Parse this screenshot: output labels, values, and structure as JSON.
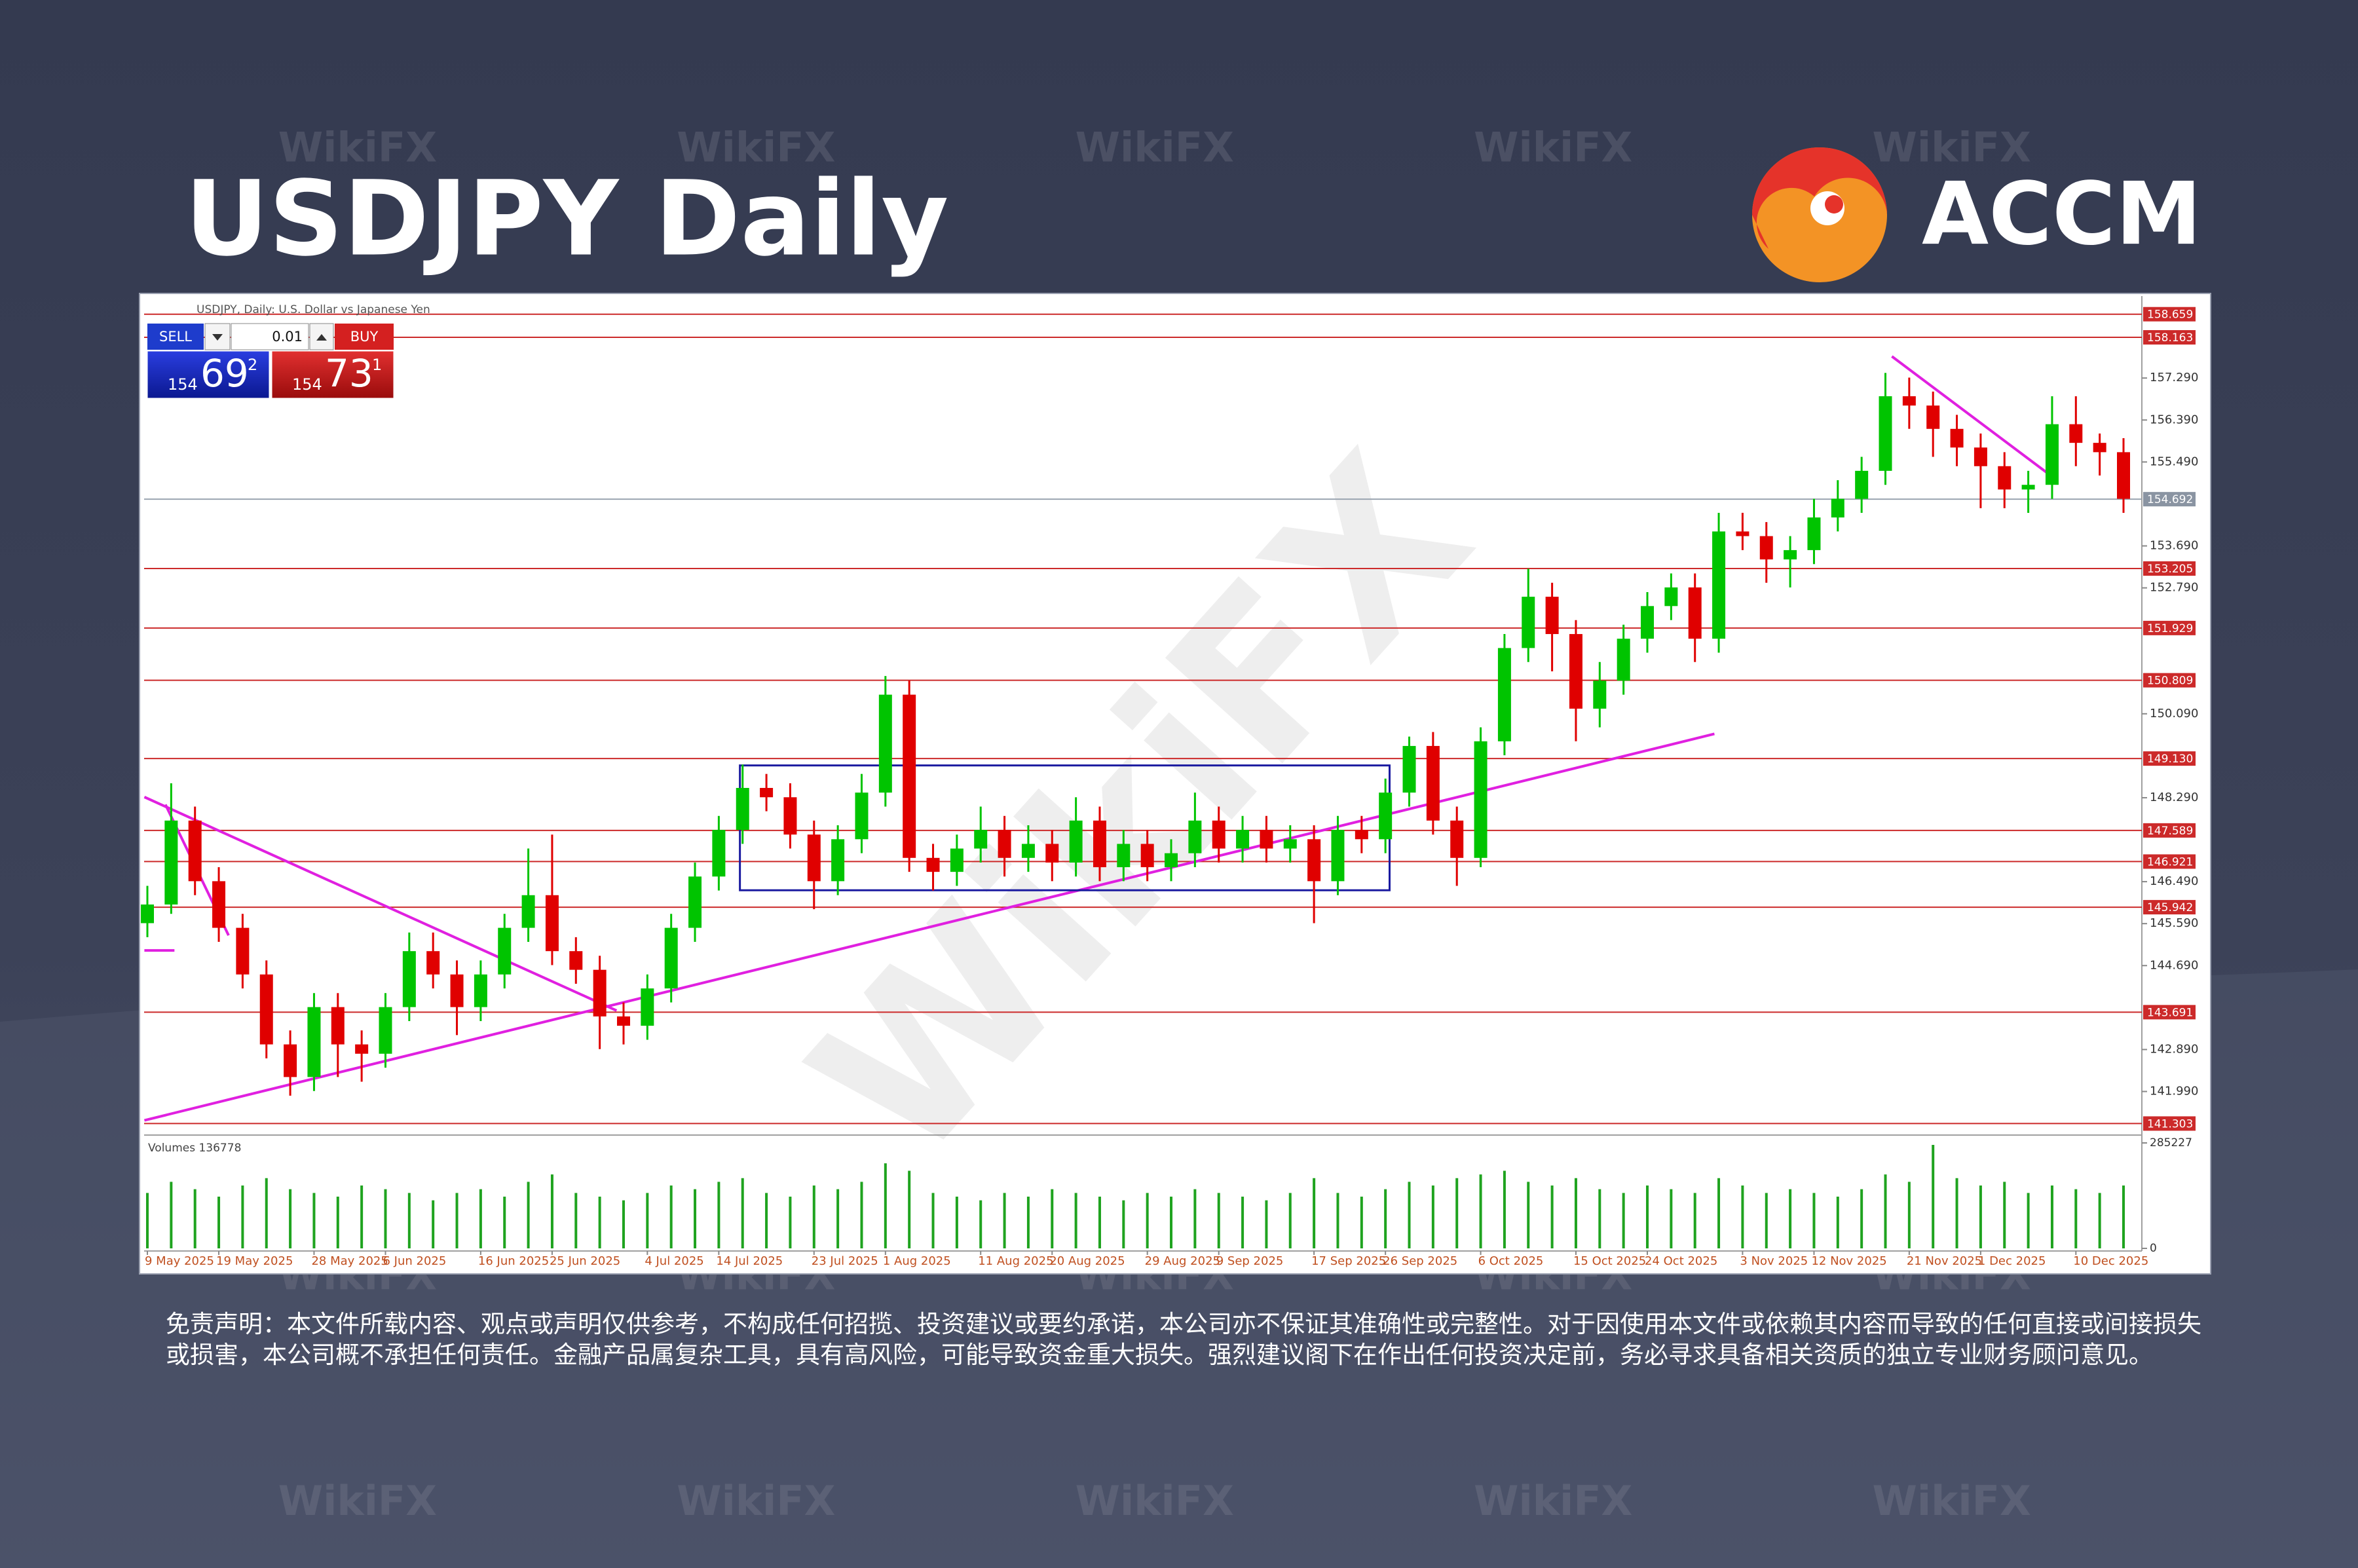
{
  "header": {
    "title": "USDJPY Daily",
    "brand": "ACCM"
  },
  "watermark": "WikiFX",
  "trade_panel": {
    "sell": "SELL",
    "buy": "BUY",
    "lot": "0.01",
    "sell_price": {
      "big_figure": "154",
      "pips": "69",
      "fraction": "2"
    },
    "buy_price": {
      "big_figure": "154",
      "pips": "73",
      "fraction": "1"
    }
  },
  "chart_data": {
    "type": "candlestick",
    "title": "USDJPY, Daily: U.S. Dollar vs Japanese Yen",
    "categories": [
      "9 May 2025",
      null,
      null,
      "19 May 2025",
      null,
      null,
      null,
      "28 May 2025",
      null,
      null,
      "6 Jun 2025",
      null,
      null,
      null,
      "16 Jun 2025",
      null,
      null,
      "25 Jun 2025",
      null,
      null,
      null,
      "4 Jul 2025",
      null,
      null,
      "14 Jul 2025",
      null,
      null,
      null,
      "23 Jul 2025",
      null,
      null,
      "1 Aug 2025",
      null,
      null,
      null,
      "11 Aug 2025",
      null,
      null,
      "20 Aug 2025",
      null,
      null,
      null,
      "29 Aug 2025",
      null,
      null,
      "9 Sep 2025",
      null,
      null,
      null,
      "17 Sep 2025",
      null,
      null,
      "26 Sep 2025",
      null,
      null,
      null,
      "6 Oct 2025",
      null,
      null,
      null,
      "15 Oct 2025",
      null,
      null,
      "24 Oct 2025",
      null,
      null,
      null,
      "3 Nov 2025",
      null,
      null,
      "12 Nov 2025",
      null,
      null,
      null,
      "21 Nov 2025",
      null,
      null,
      "1 Dec 2025",
      null,
      null,
      null,
      "10 Dec 2025",
      null,
      null
    ],
    "open": [
      145.6,
      146.0,
      147.8,
      146.5,
      145.5,
      144.5,
      143.0,
      142.3,
      143.8,
      143.0,
      142.8,
      143.8,
      145.0,
      144.5,
      143.8,
      144.5,
      145.5,
      146.2,
      145.0,
      144.6,
      143.6,
      143.4,
      144.2,
      145.5,
      146.6,
      147.6,
      148.5,
      148.3,
      147.5,
      146.5,
      147.4,
      148.4,
      150.5,
      147.0,
      146.7,
      147.2,
      147.6,
      147.0,
      147.3,
      146.9,
      147.8,
      146.8,
      147.3,
      146.8,
      147.1,
      147.8,
      147.2,
      147.6,
      147.2,
      147.4,
      146.5,
      147.6,
      147.4,
      148.4,
      149.4,
      147.8,
      147.0,
      149.5,
      151.5,
      152.6,
      151.8,
      150.2,
      150.8,
      151.7,
      152.4,
      152.8,
      151.7,
      154.0,
      153.9,
      153.4,
      153.6,
      154.3,
      154.7,
      155.3,
      156.9,
      156.7,
      156.2,
      155.8,
      155.4,
      154.9,
      155.0,
      156.3,
      155.9,
      155.7
    ],
    "high": [
      146.4,
      148.6,
      148.1,
      146.8,
      145.8,
      144.8,
      143.3,
      144.1,
      144.1,
      143.3,
      144.1,
      145.4,
      145.4,
      144.8,
      144.8,
      145.8,
      147.2,
      147.5,
      145.3,
      144.9,
      143.9,
      144.5,
      145.8,
      146.9,
      147.9,
      149.0,
      148.8,
      148.6,
      147.8,
      147.7,
      148.8,
      150.9,
      150.8,
      147.3,
      147.5,
      148.1,
      147.9,
      147.7,
      147.6,
      148.3,
      148.1,
      147.6,
      147.6,
      147.4,
      148.4,
      148.1,
      147.9,
      147.9,
      147.7,
      147.7,
      147.9,
      147.9,
      148.7,
      149.6,
      149.7,
      148.1,
      149.8,
      151.8,
      153.2,
      152.9,
      152.1,
      151.2,
      152.0,
      152.7,
      153.1,
      153.1,
      154.4,
      154.4,
      154.2,
      153.9,
      154.7,
      155.1,
      155.6,
      157.4,
      157.3,
      157.0,
      156.5,
      156.1,
      155.7,
      155.3,
      156.9,
      156.9,
      156.1,
      156.0
    ],
    "low": [
      145.3,
      145.8,
      146.2,
      145.2,
      144.2,
      142.7,
      141.9,
      142.0,
      142.3,
      142.2,
      142.5,
      143.5,
      144.2,
      143.2,
      143.5,
      144.2,
      145.2,
      144.7,
      144.3,
      142.9,
      143.0,
      143.1,
      143.9,
      145.2,
      146.3,
      147.3,
      148.0,
      147.2,
      145.9,
      146.2,
      147.1,
      148.1,
      146.7,
      146.3,
      146.4,
      146.9,
      146.6,
      146.7,
      146.5,
      146.6,
      146.5,
      146.5,
      146.5,
      146.5,
      146.8,
      146.9,
      146.9,
      146.9,
      146.9,
      145.6,
      146.2,
      147.1,
      147.1,
      148.1,
      147.5,
      146.4,
      146.8,
      149.2,
      151.2,
      151.0,
      149.5,
      149.8,
      150.5,
      151.4,
      152.1,
      151.2,
      151.4,
      153.6,
      152.9,
      152.8,
      153.3,
      154.0,
      154.4,
      155.0,
      156.2,
      155.6,
      155.4,
      154.5,
      154.5,
      154.4,
      154.7,
      155.4,
      155.2,
      154.4
    ],
    "close": [
      146.0,
      147.8,
      146.5,
      145.5,
      144.5,
      143.0,
      142.3,
      143.8,
      143.0,
      142.8,
      143.8,
      145.0,
      144.5,
      143.8,
      144.5,
      145.5,
      146.2,
      145.0,
      144.6,
      143.6,
      143.4,
      144.2,
      145.5,
      146.6,
      147.6,
      148.5,
      148.3,
      147.5,
      146.5,
      147.4,
      148.4,
      150.5,
      147.0,
      146.7,
      147.2,
      147.6,
      147.0,
      147.3,
      146.9,
      147.8,
      146.8,
      147.3,
      146.8,
      147.1,
      147.8,
      147.2,
      147.6,
      147.2,
      147.4,
      146.5,
      147.6,
      147.4,
      148.4,
      149.4,
      147.8,
      147.0,
      149.5,
      151.5,
      152.6,
      151.8,
      150.2,
      150.8,
      151.7,
      152.4,
      152.8,
      151.7,
      154.0,
      153.9,
      153.4,
      153.6,
      154.3,
      154.7,
      155.3,
      156.9,
      156.7,
      156.2,
      155.8,
      155.4,
      154.9,
      155.0,
      156.3,
      155.9,
      155.7,
      154.7
    ],
    "up_color": "#00c400",
    "down_color": "#e00000",
    "ylim": [
      141.14,
      158.95
    ],
    "yticks": [
      {
        "value": 157.29,
        "label": "157.290"
      },
      {
        "value": 156.39,
        "label": "156.390"
      },
      {
        "value": 155.49,
        "label": "155.490"
      },
      {
        "value": 153.69,
        "label": "153.690"
      },
      {
        "value": 152.79,
        "label": "152.790"
      },
      {
        "value": 150.09,
        "label": "150.090"
      },
      {
        "value": 148.29,
        "label": "148.290"
      },
      {
        "value": 146.49,
        "label": "146.490"
      },
      {
        "value": 145.59,
        "label": "145.590"
      },
      {
        "value": 144.69,
        "label": "144.690"
      },
      {
        "value": 142.89,
        "label": "142.890"
      },
      {
        "value": 141.99,
        "label": "141.990"
      }
    ],
    "levels": [
      158.659,
      158.163,
      153.205,
      151.929,
      150.809,
      {
        "value": 149.13,
        "label": "149.130"
      },
      147.589,
      146.921,
      145.942,
      143.691,
      141.303
    ],
    "level_color": "#cc2a2a",
    "current_price": 154.692,
    "volume_label": "Volumes 136778",
    "volumes": [
      150000,
      180000,
      160000,
      140000,
      170000,
      190000,
      160000,
      150000,
      140000,
      170000,
      160000,
      150000,
      130000,
      150000,
      160000,
      140000,
      180000,
      200000,
      150000,
      140000,
      130000,
      150000,
      170000,
      160000,
      180000,
      190000,
      150000,
      140000,
      170000,
      160000,
      180000,
      230000,
      210000,
      150000,
      140000,
      130000,
      150000,
      140000,
      160000,
      150000,
      140000,
      130000,
      150000,
      140000,
      160000,
      150000,
      140000,
      130000,
      150000,
      190000,
      150000,
      140000,
      160000,
      180000,
      170000,
      190000,
      200000,
      210000,
      180000,
      170000,
      190000,
      160000,
      150000,
      170000,
      160000,
      150000,
      190000,
      170000,
      150000,
      160000,
      150000,
      140000,
      160000,
      200000,
      180000,
      280000,
      190000,
      170000,
      180000,
      150000,
      170000,
      160000,
      150000,
      170000
    ],
    "volume_color": "#1fa31f",
    "volume_ylim": [
      0,
      285227
    ],
    "volume_yticks": [
      0,
      285227
    ]
  },
  "disclaimer": "免责声明：本文件所载内容、观点或声明仅供参考，不构成任何招揽、投资建议或要约承诺，本公司亦不保证其准确性或完整性。对于因使用本文件或依赖其内容而导致的任何直接或间接损失或损害，本公司概不承担任何责任。金融产品属复杂工具，具有高风险，可能导致资金重大损失。强烈建议阁下在作出任何投资决定前，务必寻求具备相关资质的独立专业财务顾问意见。"
}
